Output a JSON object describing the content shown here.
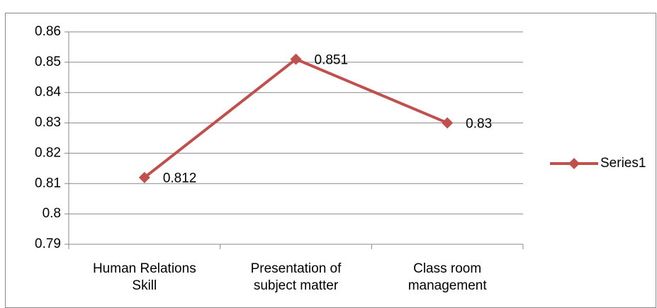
{
  "chart_data": {
    "type": "line",
    "categories": [
      "Human Relations Skill",
      "Presentation of subject matter",
      "Class room management"
    ],
    "series": [
      {
        "name": "Series1",
        "color": "#c0504d",
        "values": [
          0.812,
          0.851,
          0.83
        ]
      }
    ],
    "ylim": [
      0.79,
      0.86
    ],
    "yticks": [
      0.79,
      0.8,
      0.81,
      0.82,
      0.83,
      0.84,
      0.85,
      0.86
    ],
    "grid": true,
    "legend": "right"
  }
}
